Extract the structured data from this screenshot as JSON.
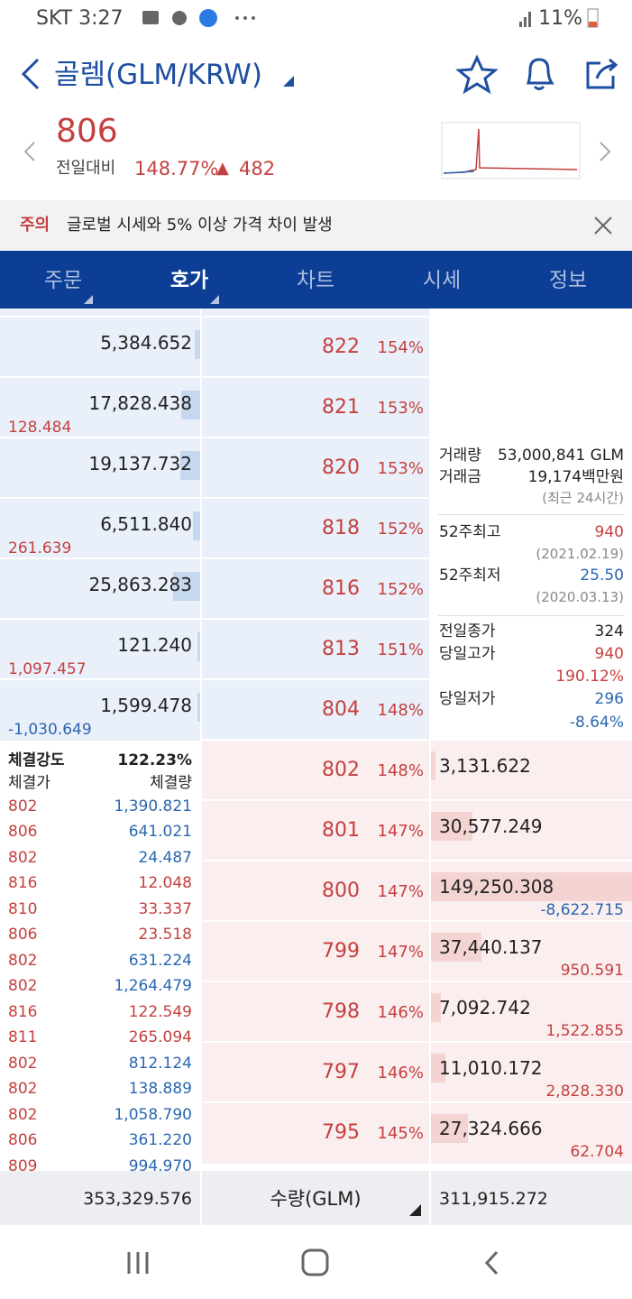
{
  "status": {
    "left": "SKT 3:27",
    "battery": "11%"
  },
  "header": {
    "title": "골렘(GLM/KRW)"
  },
  "price": {
    "value": "806",
    "label": "전일대비",
    "change_pct": "148.77%",
    "arrow": "▲",
    "change": "482"
  },
  "notice": {
    "tag": "주의",
    "text": "글로벌 시세와 5% 이상 가격 차이 발생"
  },
  "tabs": [
    "주문",
    "호가",
    "차트",
    "시세",
    "정보"
  ],
  "asks": [
    {
      "qty": "5,384.652",
      "price": "822",
      "pct": "154%"
    },
    {
      "qty": "17,828.438",
      "change": "128.484",
      "price": "821",
      "pct": "153%"
    },
    {
      "qty": "19,137.732",
      "price": "820",
      "pct": "153%"
    },
    {
      "qty": "6,511.840",
      "change": "261.639",
      "price": "818",
      "pct": "152%"
    },
    {
      "qty": "25,863.283",
      "price": "816",
      "pct": "152%"
    },
    {
      "qty": "121.240",
      "change": "1,097.457",
      "price": "813",
      "pct": "151%"
    },
    {
      "qty": "1,599.478",
      "change": "-1,030.649",
      "price": "804",
      "pct": "148%"
    }
  ],
  "bids": [
    {
      "price": "802",
      "pct": "148%",
      "qty": "3,131.622"
    },
    {
      "price": "801",
      "pct": "147%",
      "qty": "30,577.249"
    },
    {
      "price": "800",
      "pct": "147%",
      "qty": "149,250.308",
      "change": "-8,622.715"
    },
    {
      "price": "799",
      "pct": "147%",
      "qty": "37,440.137",
      "change": "950.591"
    },
    {
      "price": "798",
      "pct": "146%",
      "qty": "7,092.742",
      "change": "1,522.855"
    },
    {
      "price": "797",
      "pct": "146%",
      "qty": "11,010.172",
      "change": "2,828.330"
    },
    {
      "price": "795",
      "pct": "145%",
      "qty": "27,324.666",
      "change": "62.704"
    }
  ],
  "info": {
    "volume_label": "거래량",
    "volume": "53,000,841 GLM",
    "amount_label": "거래금",
    "amount": "19,174백만원",
    "period": "(최근 24시간)",
    "high52_label": "52주최고",
    "high52": "940",
    "high52_date": "(2021.02.19)",
    "low52_label": "52주최저",
    "low52": "25.50",
    "low52_date": "(2020.03.13)",
    "prev_close_label": "전일종가",
    "prev_close": "324",
    "day_high_label": "당일고가",
    "day_high": "940",
    "day_high_pct": "190.12%",
    "day_low_label": "당일저가",
    "day_low": "296",
    "day_low_pct": "-8.64%"
  },
  "trades": {
    "strength_label": "체결강도",
    "strength": "122.23%",
    "price_header": "체결가",
    "qty_header": "체결량",
    "rows": [
      {
        "price": "802",
        "qty": "1,390.821",
        "color": "#2a67b1"
      },
      {
        "price": "806",
        "qty": "641.021",
        "color": "#2a67b1"
      },
      {
        "price": "802",
        "qty": "24.487",
        "color": "#2a67b1"
      },
      {
        "price": "816",
        "qty": "12.048",
        "color": "#c4403f"
      },
      {
        "price": "810",
        "qty": "33.337",
        "color": "#c4403f"
      },
      {
        "price": "806",
        "qty": "23.518",
        "color": "#c4403f"
      },
      {
        "price": "802",
        "qty": "631.224",
        "color": "#2a67b1"
      },
      {
        "price": "802",
        "qty": "1,264.479",
        "color": "#2a67b1"
      },
      {
        "price": "816",
        "qty": "122.549",
        "color": "#c4403f"
      },
      {
        "price": "811",
        "qty": "265.094",
        "color": "#c4403f"
      },
      {
        "price": "802",
        "qty": "812.124",
        "color": "#2a67b1"
      },
      {
        "price": "802",
        "qty": "138.889",
        "color": "#2a67b1"
      },
      {
        "price": "802",
        "qty": "1,058.790",
        "color": "#2a67b1"
      },
      {
        "price": "806",
        "qty": "361.220",
        "color": "#2a67b1"
      },
      {
        "price": "809",
        "qty": "994.970",
        "color": "#2a67b1"
      }
    ]
  },
  "footer": {
    "ask_total": "353,329.576",
    "unit": "수량(GLM)",
    "bid_total": "311,915.272"
  }
}
